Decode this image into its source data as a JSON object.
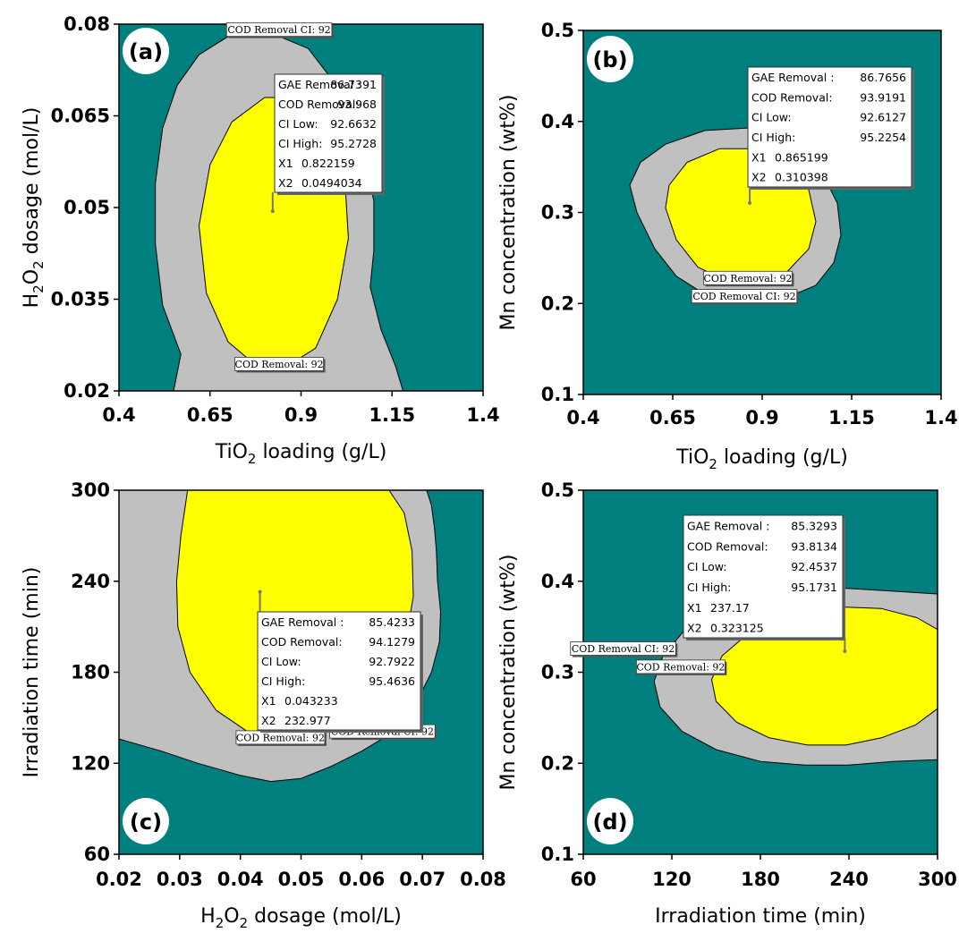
{
  "colors": {
    "background": "#007f7f",
    "ci_band": "#c0c0c0",
    "optimum": "#ffff00",
    "flag_bg": "#ffffff"
  },
  "chart_data": [
    {
      "type": "contour",
      "panel": "(a)",
      "xlabel": {
        "pre": "TiO",
        "sub": "2",
        "post": " loading (g/L)"
      },
      "ylabel": {
        "pre": "H",
        "sub": "2",
        "mid": "O",
        "sub2": "2",
        "post": " dosage (mol/L)"
      },
      "xlim": [
        0.4,
        1.4
      ],
      "ylim": [
        0.02,
        0.08
      ],
      "xticks": [
        "0.4",
        "0.65",
        "0.9",
        "1.15",
        "1.4"
      ],
      "yticks": [
        "0.02",
        "0.035",
        "0.05",
        "0.065",
        "0.08"
      ],
      "ci_region": [
        [
          0.55,
          0.02
        ],
        [
          0.57,
          0.026
        ],
        [
          0.52,
          0.034
        ],
        [
          0.5,
          0.044
        ],
        [
          0.5,
          0.054
        ],
        [
          0.52,
          0.063
        ],
        [
          0.56,
          0.07
        ],
        [
          0.62,
          0.075
        ],
        [
          0.7,
          0.078
        ],
        [
          0.8,
          0.079
        ],
        [
          0.92,
          0.076
        ],
        [
          1.01,
          0.069
        ],
        [
          1.07,
          0.06
        ],
        [
          1.1,
          0.051
        ],
        [
          1.1,
          0.043
        ],
        [
          1.09,
          0.037
        ],
        [
          1.12,
          0.03
        ],
        [
          1.16,
          0.024
        ],
        [
          1.18,
          0.02
        ]
      ],
      "optimum_region": [
        [
          0.62,
          0.047
        ],
        [
          0.64,
          0.036
        ],
        [
          0.7,
          0.028
        ],
        [
          0.78,
          0.024
        ],
        [
          0.86,
          0.024
        ],
        [
          0.94,
          0.027
        ],
        [
          1.0,
          0.035
        ],
        [
          1.03,
          0.045
        ],
        [
          1.02,
          0.055
        ],
        [
          0.97,
          0.063
        ],
        [
          0.89,
          0.068
        ],
        [
          0.8,
          0.068
        ],
        [
          0.71,
          0.064
        ],
        [
          0.65,
          0.057
        ]
      ],
      "contour_flags": [
        {
          "text": "COD Removal CI: 92",
          "x": 0.84,
          "y": 0.0791
        },
        {
          "text": "COD Removal: 92",
          "x": 0.84,
          "y": 0.0244
        }
      ],
      "optimum_point": {
        "x": 0.822159,
        "y": 0.0494034
      },
      "tooltip": [
        [
          "GAE Removal :",
          "86.7391"
        ],
        [
          "COD Removal:",
          "93.968"
        ],
        [
          "  CI Low:",
          "92.6632"
        ],
        [
          "  CI High:",
          "95.2728"
        ],
        [
          "X1",
          "0.822159"
        ],
        [
          "X2",
          "0.0494034"
        ]
      ]
    },
    {
      "type": "contour",
      "panel": "(b)",
      "xlabel": {
        "pre": "TiO",
        "sub": "2",
        "post": " loading (g/L)"
      },
      "ylabel": {
        "pre": "Mn concentration (wt%)"
      },
      "xlim": [
        0.4,
        1.4
      ],
      "ylim": [
        0.1,
        0.5
      ],
      "xticks": [
        "0.4",
        "0.65",
        "0.9",
        "1.15",
        "1.4"
      ],
      "yticks": [
        "0.1",
        "0.2",
        "0.3",
        "0.4",
        "0.5"
      ],
      "ci_region": [
        [
          0.53,
          0.33
        ],
        [
          0.55,
          0.3
        ],
        [
          0.6,
          0.26
        ],
        [
          0.66,
          0.23
        ],
        [
          0.74,
          0.21
        ],
        [
          0.85,
          0.2
        ],
        [
          0.96,
          0.205
        ],
        [
          1.05,
          0.22
        ],
        [
          1.1,
          0.245
        ],
        [
          1.12,
          0.275
        ],
        [
          1.11,
          0.31
        ],
        [
          1.06,
          0.35
        ],
        [
          0.98,
          0.38
        ],
        [
          0.87,
          0.393
        ],
        [
          0.74,
          0.39
        ],
        [
          0.63,
          0.375
        ],
        [
          0.56,
          0.355
        ]
      ],
      "optimum_region": [
        [
          0.63,
          0.305
        ],
        [
          0.66,
          0.27
        ],
        [
          0.72,
          0.24
        ],
        [
          0.8,
          0.225
        ],
        [
          0.88,
          0.222
        ],
        [
          0.97,
          0.235
        ],
        [
          1.03,
          0.26
        ],
        [
          1.05,
          0.29
        ],
        [
          1.03,
          0.325
        ],
        [
          0.97,
          0.355
        ],
        [
          0.88,
          0.37
        ],
        [
          0.78,
          0.37
        ],
        [
          0.69,
          0.355
        ],
        [
          0.64,
          0.33
        ]
      ],
      "contour_flags": [
        {
          "text": "COD Removal: 92",
          "x": 0.86,
          "y": 0.228
        },
        {
          "text": "COD Removal CI: 92",
          "x": 0.85,
          "y": 0.208
        }
      ],
      "optimum_point": {
        "x": 0.865199,
        "y": 0.310398
      },
      "tooltip": [
        [
          "GAE Removal :",
          "86.7656"
        ],
        [
          "COD Removal:",
          "93.9191"
        ],
        [
          "  CI Low:",
          "92.6127"
        ],
        [
          "  CI High:",
          "95.2254"
        ],
        [
          "X1",
          "0.865199"
        ],
        [
          "X2",
          "0.310398"
        ]
      ]
    },
    {
      "type": "contour",
      "panel": "(c)",
      "xlabel": {
        "pre": "H",
        "sub": "2",
        "mid": "O",
        "sub2": "2",
        "post": " dosage (mol/L)"
      },
      "ylabel": {
        "pre": "Irradiation time (min)"
      },
      "xlim": [
        0.02,
        0.08
      ],
      "ylim": [
        60,
        300
      ],
      "xticks": [
        "0.02",
        "0.03",
        "0.04",
        "0.05",
        "0.06",
        "0.07",
        "0.08"
      ],
      "yticks": [
        "60",
        "120",
        "180",
        "240",
        "300"
      ],
      "ci_region": [
        [
          0.02,
          300
        ],
        [
          0.0707,
          300
        ],
        [
          0.0715,
          290
        ],
        [
          0.072,
          275
        ],
        [
          0.0723,
          260
        ],
        [
          0.0725,
          240
        ],
        [
          0.073,
          220
        ],
        [
          0.0728,
          200
        ],
        [
          0.0715,
          180
        ],
        [
          0.069,
          160
        ],
        [
          0.065,
          140
        ],
        [
          0.06,
          128
        ],
        [
          0.055,
          118
        ],
        [
          0.05,
          110
        ],
        [
          0.045,
          108
        ],
        [
          0.04,
          112
        ],
        [
          0.033,
          120
        ],
        [
          0.027,
          128
        ],
        [
          0.02,
          136
        ]
      ],
      "optimum_region": [
        [
          0.0313,
          300
        ],
        [
          0.0645,
          300
        ],
        [
          0.067,
          285
        ],
        [
          0.0683,
          260
        ],
        [
          0.0685,
          230
        ],
        [
          0.0672,
          200
        ],
        [
          0.0645,
          175
        ],
        [
          0.0595,
          155
        ],
        [
          0.0535,
          142
        ],
        [
          0.0475,
          136
        ],
        [
          0.0415,
          140
        ],
        [
          0.036,
          155
        ],
        [
          0.0317,
          180
        ],
        [
          0.0297,
          210
        ],
        [
          0.0295,
          240
        ],
        [
          0.0302,
          270
        ]
      ],
      "contour_flags": [
        {
          "text": "COD Removal: 92",
          "x": 0.0466,
          "y": 137
        },
        {
          "text": "COD Removal CI: 92",
          "x": 0.0634,
          "y": 141
        }
      ],
      "optimum_point": {
        "x": 0.043233,
        "y": 232.977
      },
      "tooltip": [
        [
          "GAE Removal :",
          "85.4233"
        ],
        [
          "COD Removal:",
          "94.1279"
        ],
        [
          "  CI Low:",
          "92.7922"
        ],
        [
          "  CI High:",
          "95.4636"
        ],
        [
          "X1",
          "0.043233"
        ],
        [
          "X2",
          "232.977"
        ]
      ]
    },
    {
      "type": "contour",
      "panel": "(d)",
      "xlabel": {
        "pre": "Irradiation time (min)"
      },
      "ylabel": {
        "pre": "Mn concentration (wt%)"
      },
      "xlim": [
        60,
        300
      ],
      "ylim": [
        0.1,
        0.5
      ],
      "xticks": [
        "60",
        "120",
        "180",
        "240",
        "300"
      ],
      "yticks": [
        "0.1",
        "0.2",
        "0.3",
        "0.4",
        "0.5"
      ],
      "ci_region": [
        [
          300,
          0.386
        ],
        [
          300,
          0.204
        ],
        [
          270,
          0.202
        ],
        [
          240,
          0.198
        ],
        [
          210,
          0.198
        ],
        [
          180,
          0.202
        ],
        [
          150,
          0.215
        ],
        [
          127,
          0.235
        ],
        [
          112,
          0.262
        ],
        [
          108,
          0.29
        ],
        [
          114,
          0.318
        ],
        [
          128,
          0.345
        ],
        [
          150,
          0.37
        ],
        [
          180,
          0.388
        ],
        [
          210,
          0.394
        ],
        [
          240,
          0.392
        ],
        [
          270,
          0.389
        ]
      ],
      "optimum_region": [
        [
          300,
          0.347
        ],
        [
          300,
          0.26
        ],
        [
          285,
          0.242
        ],
        [
          262,
          0.228
        ],
        [
          238,
          0.22
        ],
        [
          212,
          0.22
        ],
        [
          186,
          0.228
        ],
        [
          164,
          0.245
        ],
        [
          150,
          0.268
        ],
        [
          147,
          0.292
        ],
        [
          154,
          0.318
        ],
        [
          172,
          0.343
        ],
        [
          198,
          0.362
        ],
        [
          230,
          0.372
        ],
        [
          262,
          0.37
        ],
        [
          286,
          0.36
        ]
      ],
      "contour_flags": [
        {
          "text": "COD Removal CI: 92",
          "x": 87,
          "y": 0.326
        },
        {
          "text": "COD Removal: 92",
          "x": 126,
          "y": 0.306
        }
      ],
      "optimum_point": {
        "x": 237.17,
        "y": 0.323125
      },
      "tooltip": [
        [
          "GAE Removal :",
          "85.3293"
        ],
        [
          "COD Removal:",
          "93.8134"
        ],
        [
          "  CI Low:",
          "92.4537"
        ],
        [
          "  CI High:",
          "95.1731"
        ],
        [
          "X1",
          "237.17"
        ],
        [
          "X2",
          "0.323125"
        ]
      ]
    }
  ]
}
